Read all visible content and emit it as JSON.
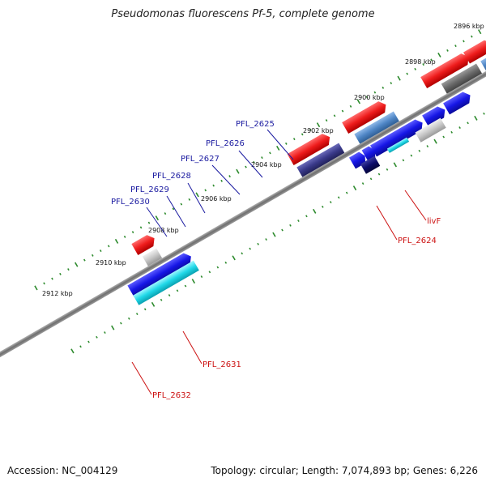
{
  "title": "Pseudomonas fluorescens Pf-5, complete genome",
  "footer": {
    "accession": "Accession: NC_004129",
    "summary": "Topology: circular; Length: 7,074,893 bp; Genes: 6,226"
  },
  "colors": {
    "backbone": "#8a8a8a",
    "tick": "#2e8b2e",
    "label_blue": "#1a1aa0",
    "label_red": "#cc1111",
    "forward_red": "#ee1c1c",
    "reverse_steel": "#4f86c6",
    "reverse_gray": "#6a6a6a",
    "reverse_purple": "#3a3a8a",
    "blue_gene": "#1616e6",
    "cyan_gene": "#20d8e8",
    "navy_gene": "#0c0c6a",
    "silver_gene": "#c8c8c8"
  },
  "scale_labels": [
    "2896 kbp",
    "2898 kbp",
    "2900 kbp",
    "2902 kbp",
    "2904 kbp",
    "2906 kbp",
    "2908 kbp",
    "2910 kbp",
    "2912 kbp"
  ],
  "gene_labels": [
    "PFL_2625",
    "PFL_2626",
    "PFL_2627",
    "PFL_2628",
    "PFL_2629",
    "PFL_2630",
    "livF",
    "PFL_2624",
    "PFL_2631",
    "PFL_2632"
  ]
}
